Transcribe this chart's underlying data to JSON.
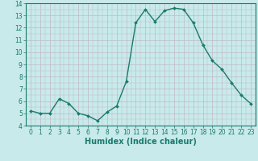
{
  "xlabel": "Humidex (Indice chaleur)",
  "ylabel": "",
  "x": [
    0,
    1,
    2,
    3,
    4,
    5,
    6,
    7,
    8,
    9,
    10,
    11,
    12,
    13,
    14,
    15,
    16,
    17,
    18,
    19,
    20,
    21,
    22,
    23
  ],
  "y": [
    5.2,
    5.0,
    5.0,
    6.2,
    5.8,
    5.0,
    4.8,
    4.4,
    5.1,
    5.6,
    7.6,
    12.4,
    13.5,
    12.5,
    13.4,
    13.6,
    13.5,
    12.4,
    10.6,
    9.3,
    8.6,
    7.5,
    6.5,
    5.8
  ],
  "line_color": "#1a7a6e",
  "marker": "D",
  "marker_size": 2.0,
  "line_width": 1.0,
  "bg_color": "#c8eaea",
  "grid_color": "#c0b8c8",
  "ylim": [
    4,
    14
  ],
  "xlim": [
    -0.5,
    23.5
  ],
  "yticks": [
    4,
    5,
    6,
    7,
    8,
    9,
    10,
    11,
    12,
    13,
    14
  ],
  "xticks": [
    0,
    1,
    2,
    3,
    4,
    5,
    6,
    7,
    8,
    9,
    10,
    11,
    12,
    13,
    14,
    15,
    16,
    17,
    18,
    19,
    20,
    21,
    22,
    23
  ],
  "tick_label_fontsize": 5.5,
  "xlabel_fontsize": 7.0,
  "tick_color": "#1a7a6e"
}
